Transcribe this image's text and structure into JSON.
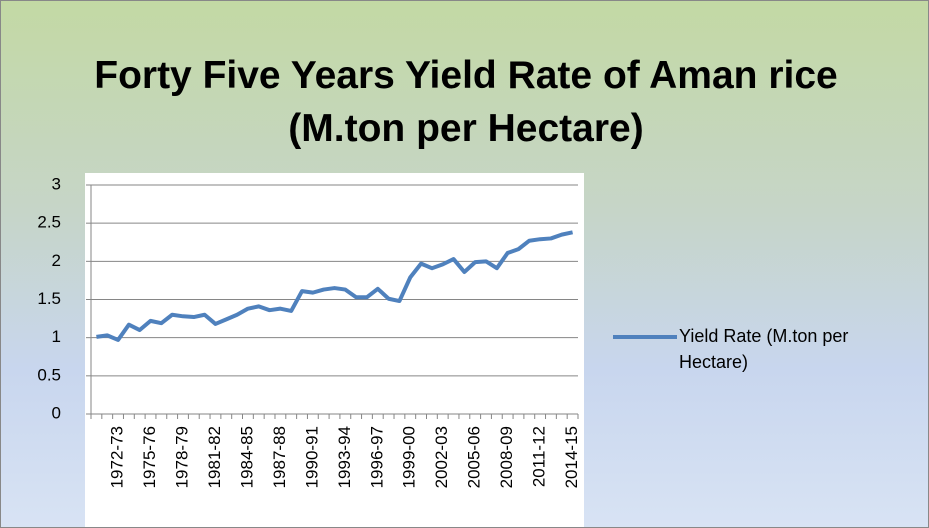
{
  "chart_data": {
    "type": "line",
    "title": "Forty Five Years Yield Rate of Aman rice (M.ton per Hectare)",
    "categories": [
      null,
      null,
      "1972-73",
      null,
      null,
      "1975-76",
      null,
      null,
      "1978-79",
      null,
      null,
      "1981-82",
      null,
      null,
      "1984-85",
      null,
      null,
      "1987-88",
      null,
      null,
      "1990-91",
      null,
      null,
      "1993-94",
      null,
      null,
      "1996-97",
      null,
      null,
      "1999-00",
      null,
      null,
      "2002-03",
      null,
      null,
      "2005-06",
      null,
      null,
      "2008-09",
      null,
      null,
      "2011-12",
      null,
      null,
      "2014-15"
    ],
    "series": [
      {
        "name": "Yield Rate (M.ton per Hectare)",
        "color": "#4f81bd",
        "values": [
          1.01,
          1.03,
          0.97,
          1.17,
          1.1,
          1.22,
          1.19,
          1.3,
          1.28,
          1.27,
          1.3,
          1.18,
          1.24,
          1.3,
          1.38,
          1.41,
          1.36,
          1.38,
          1.35,
          1.61,
          1.59,
          1.63,
          1.65,
          1.63,
          1.53,
          1.53,
          1.64,
          1.51,
          1.48,
          1.79,
          1.97,
          1.91,
          1.96,
          2.03,
          1.86,
          1.99,
          2.0,
          1.91,
          2.11,
          2.16,
          2.27,
          2.29,
          2.3,
          2.35,
          2.38
        ]
      }
    ],
    "ylim": [
      0,
      3
    ],
    "yticks": [
      0,
      0.5,
      1,
      1.5,
      2,
      2.5,
      3
    ],
    "grid": true,
    "legend": "right"
  }
}
